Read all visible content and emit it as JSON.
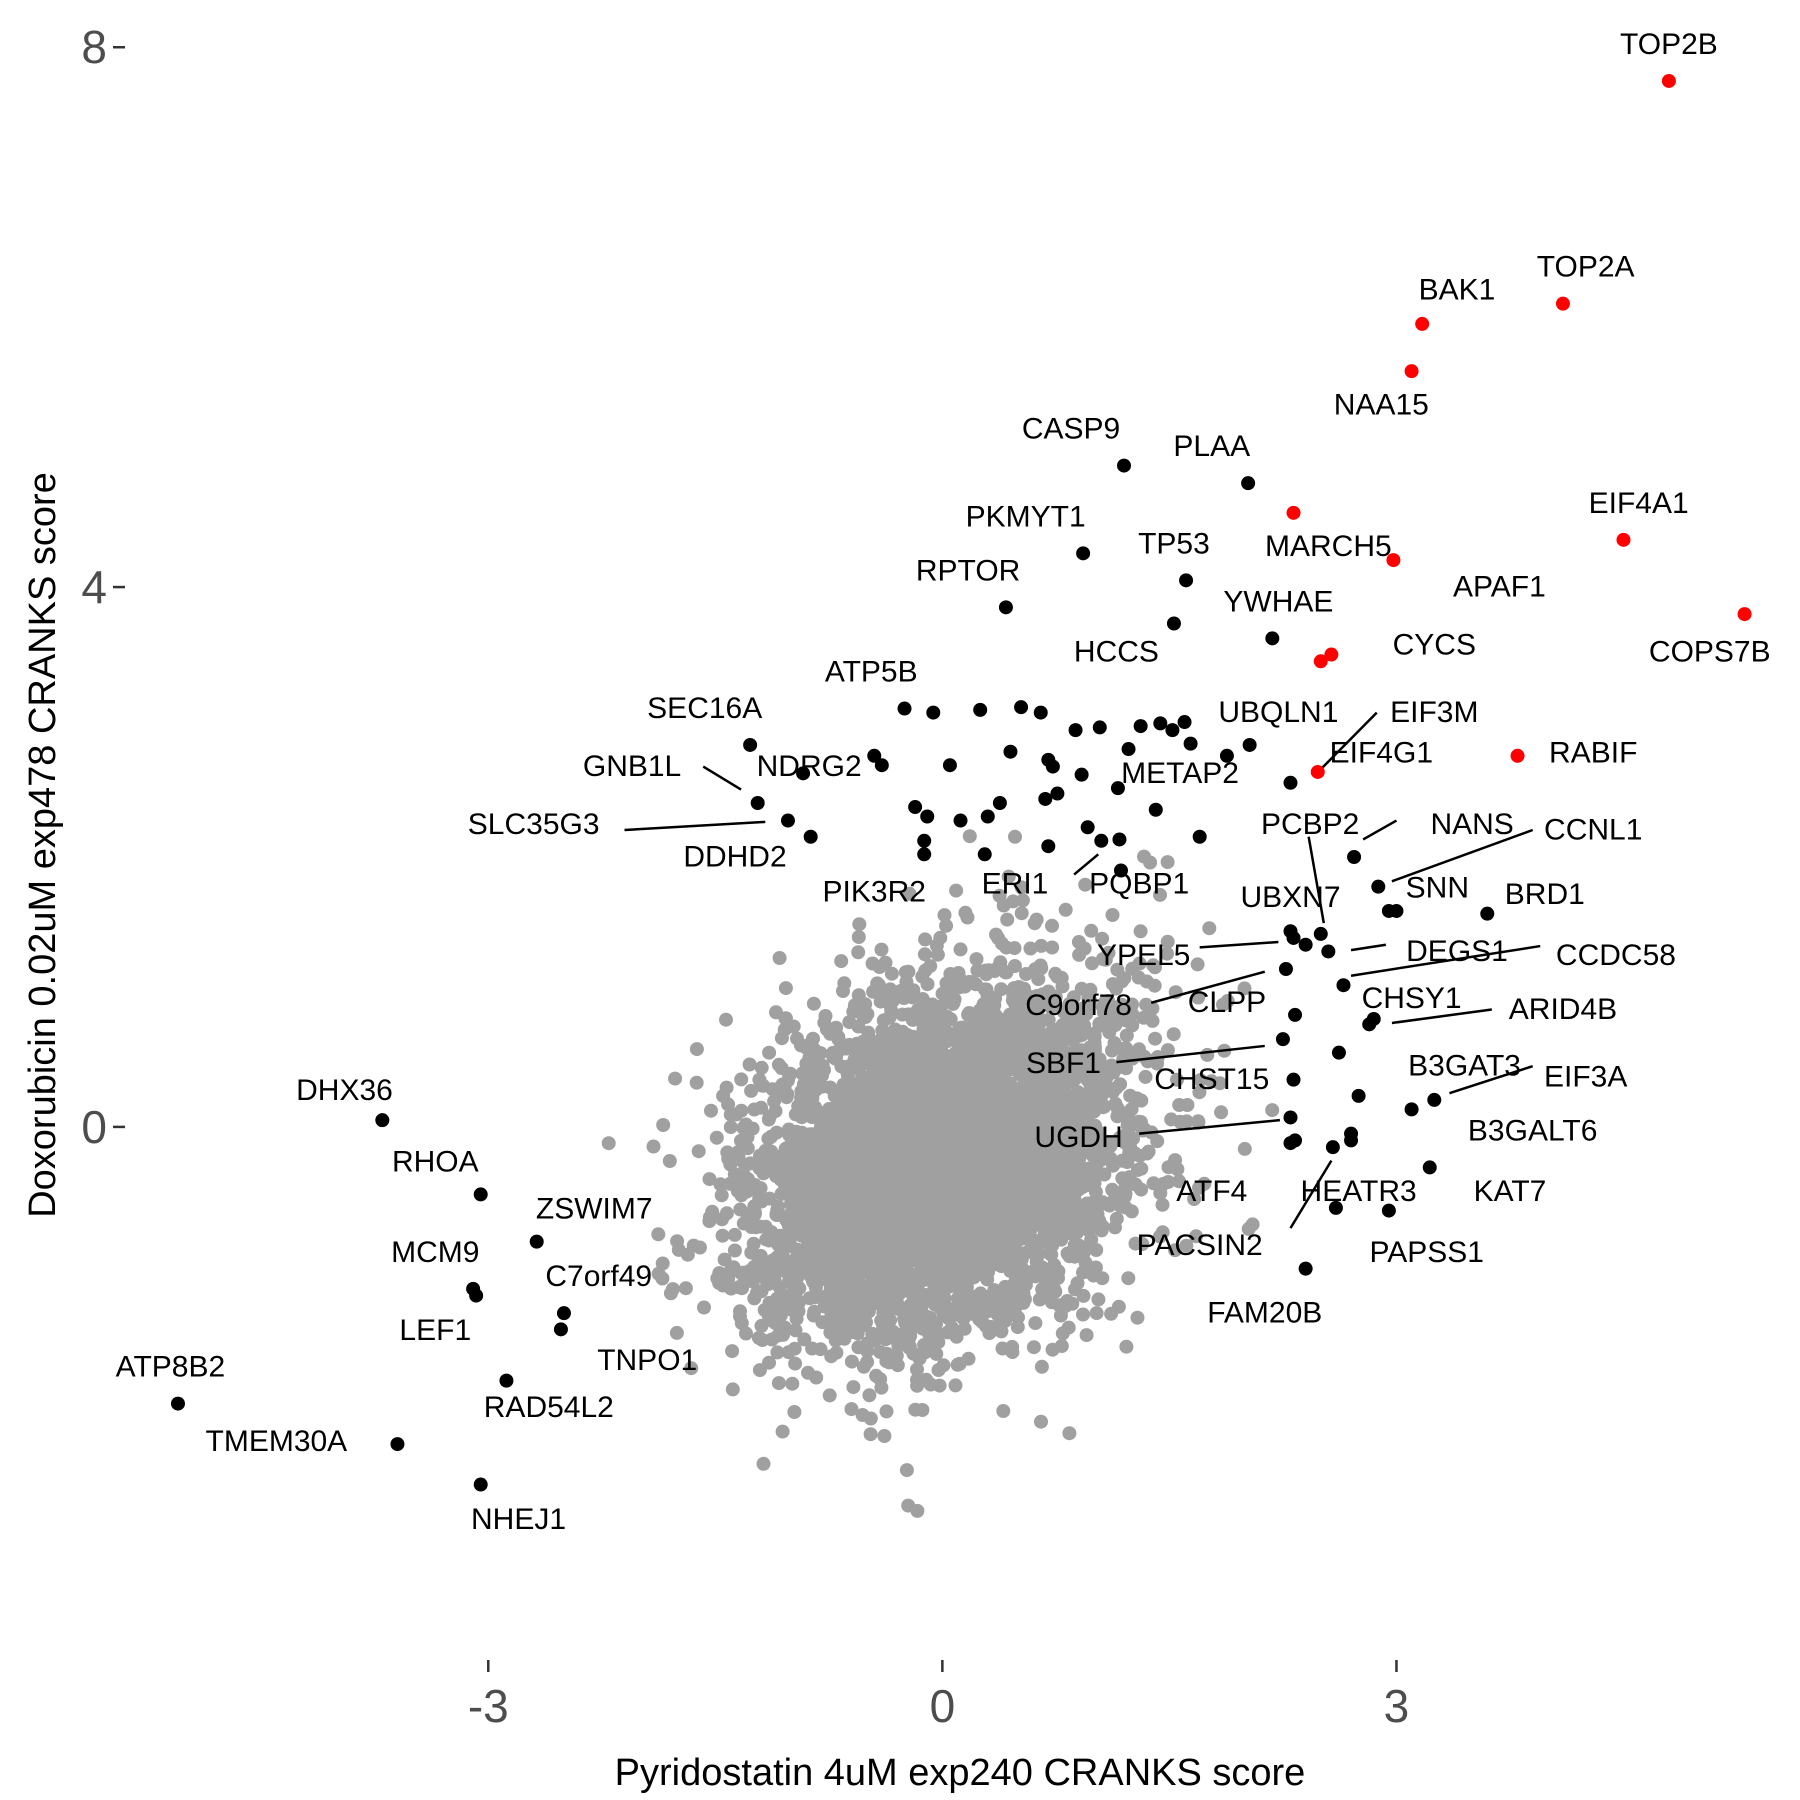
{
  "chart_data": {
    "type": "scatter",
    "xlabel": "Pyridostatin 4uM exp240 CRANKS score",
    "ylabel": "Doxorubicin 0.02uM exp478 CRANKS score",
    "xlim": [
      -5.4,
      5.6
    ],
    "ylim": [
      -3.95,
      8.35
    ],
    "x_ticks": [
      {
        "value": -3,
        "label": "-3"
      },
      {
        "value": 0,
        "label": "0"
      },
      {
        "value": 3,
        "label": "3"
      }
    ],
    "y_ticks": [
      {
        "value": 0,
        "label": "0"
      },
      {
        "value": 4,
        "label": "4"
      },
      {
        "value": 8,
        "label": "8"
      }
    ],
    "grid": false,
    "background_points": {
      "count": 5200,
      "color": "#a0a0a0",
      "x_sd": 0.6,
      "y_sd": 0.65,
      "correlation": 0.3
    },
    "colors": {
      "highlight": "#ff0000",
      "labeled": "#000000",
      "background": "#a0a0a0"
    },
    "highlighted": [
      {
        "gene": "TOP2B",
        "x": 4.8,
        "y": 7.75
      },
      {
        "gene": "TOP2A",
        "x": 4.1,
        "y": 6.1
      },
      {
        "gene": "BAK1",
        "x": 3.17,
        "y": 5.95
      },
      {
        "gene": "NAA15",
        "x": 3.1,
        "y": 5.6
      },
      {
        "gene": "MARCH5",
        "x": 2.32,
        "y": 4.55
      },
      {
        "gene": "EIF4A1",
        "x": 4.5,
        "y": 4.35
      },
      {
        "gene": "APAF1",
        "x": 2.98,
        "y": 4.2
      },
      {
        "gene": "COPS7B",
        "x": 5.3,
        "y": 3.8
      },
      {
        "gene": "CYCS",
        "x": 2.5,
        "y": 3.45
      },
      {
        "gene": "EIF3M",
        "x": 2.57,
        "y": 3.5
      },
      {
        "gene": "RABIF",
        "x": 3.8,
        "y": 2.75
      },
      {
        "gene": "EIF4G1",
        "x": 2.48,
        "y": 2.63
      }
    ],
    "labeled": [
      {
        "gene": "CASP9",
        "x": 1.2,
        "y": 4.9
      },
      {
        "gene": "PLAA",
        "x": 2.02,
        "y": 4.77
      },
      {
        "gene": "PKMYT1",
        "x": 0.93,
        "y": 4.25
      },
      {
        "gene": "TP53",
        "x": 1.61,
        "y": 4.05
      },
      {
        "gene": "RPTOR",
        "x": 0.42,
        "y": 3.85
      },
      {
        "gene": "YWHAE",
        "x": 2.18,
        "y": 3.62
      },
      {
        "gene": "HCCS",
        "x": 1.53,
        "y": 3.73
      },
      {
        "gene": "ATP5B",
        "x": -0.25,
        "y": 3.1
      },
      {
        "gene": "UBQLN1",
        "x": 1.6,
        "y": 3.0
      },
      {
        "gene": "METAP2",
        "x": 1.41,
        "y": 2.35
      },
      {
        "gene": "SEC16A",
        "x": -1.27,
        "y": 2.83
      },
      {
        "gene": "GNB1L",
        "x": -1.22,
        "y": 2.4
      },
      {
        "gene": "NDRG2",
        "x": -0.92,
        "y": 2.62
      },
      {
        "gene": "SLC35G3",
        "x": -1.02,
        "y": 2.27
      },
      {
        "gene": "DDHD2",
        "x": -0.87,
        "y": 2.15
      },
      {
        "gene": "PIK3R2",
        "x": -0.12,
        "y": 2.12
      },
      {
        "gene": "ERI1",
        "x": 1.05,
        "y": 2.12
      },
      {
        "gene": "PQBP1",
        "x": 1.17,
        "y": 2.13
      },
      {
        "gene": "PCBP2",
        "x": 2.72,
        "y": 2.0
      },
      {
        "gene": "NANS",
        "x": 2.88,
        "y": 1.78
      },
      {
        "gene": "CCNL1",
        "x": 2.95,
        "y": 1.6
      },
      {
        "gene": "SNN",
        "x": 3.0,
        "y": 1.6
      },
      {
        "gene": "BRD1",
        "x": 3.6,
        "y": 1.58
      },
      {
        "gene": "UBXN7",
        "x": 2.5,
        "y": 1.43
      },
      {
        "gene": "YPEL5",
        "x": 2.32,
        "y": 1.4
      },
      {
        "gene": "DEGS1",
        "x": 2.55,
        "y": 1.3
      },
      {
        "gene": "CCDC58",
        "x": 2.65,
        "y": 1.05
      },
      {
        "gene": "C9orf78",
        "x": 2.27,
        "y": 1.17
      },
      {
        "gene": "CLPP",
        "x": 2.33,
        "y": 0.83
      },
      {
        "gene": "CHSY1",
        "x": 2.85,
        "y": 0.8
      },
      {
        "gene": "ARID4B",
        "x": 2.82,
        "y": 0.76
      },
      {
        "gene": "SBF1",
        "x": 2.25,
        "y": 0.65
      },
      {
        "gene": "CHST15",
        "x": 2.62,
        "y": 0.55
      },
      {
        "gene": "B3GAT3",
        "x": 2.75,
        "y": 0.23
      },
      {
        "gene": "EIF3A",
        "x": 3.25,
        "y": 0.2
      },
      {
        "gene": "B3GALT6",
        "x": 3.1,
        "y": 0.13
      },
      {
        "gene": "UGDH",
        "x": 2.3,
        "y": 0.07
      },
      {
        "gene": "ATF4",
        "x": 2.33,
        "y": -0.1
      },
      {
        "gene": "HEATR3",
        "x": 2.58,
        "y": -0.15
      },
      {
        "gene": "KAT7",
        "x": 3.22,
        "y": -0.3
      },
      {
        "gene": "PACSIN2",
        "x": 2.6,
        "y": -0.6
      },
      {
        "gene": "PAPSS1",
        "x": 2.95,
        "y": -0.62
      },
      {
        "gene": "FAM20B",
        "x": 2.4,
        "y": -1.05
      },
      {
        "gene": "DHX36",
        "x": -3.7,
        "y": 0.05
      },
      {
        "gene": "RHOA",
        "x": -3.05,
        "y": -0.5
      },
      {
        "gene": "ZSWIM7",
        "x": -2.68,
        "y": -0.85
      },
      {
        "gene": "MCM9",
        "x": -3.1,
        "y": -1.2
      },
      {
        "gene": "LEF1",
        "x": -3.08,
        "y": -1.25
      },
      {
        "gene": "C7orf49",
        "x": -2.5,
        "y": -1.38
      },
      {
        "gene": "TNPO1",
        "x": -2.52,
        "y": -1.5
      },
      {
        "gene": "ATP8B2",
        "x": -5.05,
        "y": -2.05
      },
      {
        "gene": "RAD54L2",
        "x": -2.88,
        "y": -1.88
      },
      {
        "gene": "TMEM30A",
        "x": -3.6,
        "y": -2.35
      },
      {
        "gene": "NHEJ1",
        "x": -3.05,
        "y": -2.65
      }
    ],
    "unlabeled_outliers": [
      {
        "x": 0.65,
        "y": 3.07
      },
      {
        "x": 0.88,
        "y": 2.94
      },
      {
        "x": 1.04,
        "y": 2.96
      },
      {
        "x": 1.31,
        "y": 2.97
      },
      {
        "x": 1.44,
        "y": 2.99
      },
      {
        "x": 1.52,
        "y": 2.94
      },
      {
        "x": -0.06,
        "y": 3.07
      },
      {
        "x": 0.25,
        "y": 3.09
      },
      {
        "x": 0.52,
        "y": 3.11
      },
      {
        "x": 1.23,
        "y": 2.8
      },
      {
        "x": 1.64,
        "y": 2.84
      },
      {
        "x": 1.88,
        "y": 2.75
      },
      {
        "x": 2.03,
        "y": 2.83
      },
      {
        "x": 0.7,
        "y": 2.72
      },
      {
        "x": 0.45,
        "y": 2.78
      },
      {
        "x": -0.4,
        "y": 2.68
      },
      {
        "x": -0.45,
        "y": 2.75
      },
      {
        "x": 0.05,
        "y": 2.68
      },
      {
        "x": 0.73,
        "y": 2.67
      },
      {
        "x": 0.92,
        "y": 2.61
      },
      {
        "x": 1.16,
        "y": 2.51
      },
      {
        "x": 2.3,
        "y": 2.55
      },
      {
        "x": 0.38,
        "y": 2.4
      },
      {
        "x": 0.68,
        "y": 2.43
      },
      {
        "x": 0.76,
        "y": 2.47
      },
      {
        "x": -0.18,
        "y": 2.37
      },
      {
        "x": -0.1,
        "y": 2.3
      },
      {
        "x": 0.12,
        "y": 2.27
      },
      {
        "x": 0.3,
        "y": 2.3
      },
      {
        "x": 0.96,
        "y": 2.22
      },
      {
        "x": 1.7,
        "y": 2.15
      },
      {
        "x": -0.12,
        "y": 2.02
      },
      {
        "x": 0.28,
        "y": 2.02
      },
      {
        "x": 0.7,
        "y": 2.08
      },
      {
        "x": 1.18,
        "y": 1.9
      },
      {
        "x": 2.3,
        "y": 1.45
      },
      {
        "x": 2.4,
        "y": 1.35
      },
      {
        "x": 2.32,
        "y": 0.35
      },
      {
        "x": 2.3,
        "y": -0.12
      },
      {
        "x": 2.7,
        "y": -0.05
      },
      {
        "x": 2.7,
        "y": -0.1
      }
    ],
    "annotation_leaders": [
      {
        "from": [
          -1.58,
          2.67
        ],
        "to": [
          -1.33,
          2.5
        ]
      },
      {
        "from": [
          -2.1,
          2.2
        ],
        "to": [
          -1.17,
          2.26
        ]
      },
      {
        "from": [
          2.5,
          2.65
        ],
        "to": [
          2.87,
          3.07
        ]
      },
      {
        "from": [
          0.87,
          1.87
        ],
        "to": [
          1.03,
          2.02
        ]
      },
      {
        "from": [
          2.42,
          2.15
        ],
        "to": [
          2.52,
          1.51
        ]
      },
      {
        "from": [
          2.78,
          2.13
        ],
        "to": [
          3.0,
          2.27
        ]
      },
      {
        "from": [
          2.97,
          1.82
        ],
        "to": [
          3.9,
          2.2
        ]
      },
      {
        "from": [
          1.7,
          1.33
        ],
        "to": [
          2.22,
          1.37
        ]
      },
      {
        "from": [
          2.7,
          1.31
        ],
        "to": [
          2.93,
          1.35
        ]
      },
      {
        "from": [
          2.7,
          1.12
        ],
        "to": [
          3.95,
          1.34
        ]
      },
      {
        "from": [
          1.38,
          0.92
        ],
        "to": [
          2.13,
          1.15
        ]
      },
      {
        "from": [
          2.97,
          0.77
        ],
        "to": [
          3.63,
          0.87
        ]
      },
      {
        "from": [
          1.15,
          0.48
        ],
        "to": [
          2.13,
          0.6
        ]
      },
      {
        "from": [
          3.35,
          0.25
        ],
        "to": [
          3.9,
          0.45
        ]
      },
      {
        "from": [
          1.3,
          -0.05
        ],
        "to": [
          2.23,
          0.05
        ]
      },
      {
        "from": [
          2.3,
          -0.75
        ],
        "to": [
          2.57,
          -0.25
        ]
      }
    ],
    "label_positions": [
      {
        "text": "TOP2B",
        "x": 4.8,
        "y": 7.95,
        "anchor": "middle"
      },
      {
        "text": "TOP2A",
        "x": 4.25,
        "y": 6.3,
        "anchor": "middle"
      },
      {
        "text": "BAK1",
        "x": 3.4,
        "y": 6.13,
        "anchor": "middle"
      },
      {
        "text": "NAA15",
        "x": 2.9,
        "y": 5.28,
        "anchor": "middle"
      },
      {
        "text": "CASP9",
        "x": 0.85,
        "y": 5.1,
        "anchor": "middle"
      },
      {
        "text": "PLAA",
        "x": 1.78,
        "y": 4.97,
        "anchor": "middle"
      },
      {
        "text": "EIF4A1",
        "x": 4.6,
        "y": 4.55,
        "anchor": "middle"
      },
      {
        "text": "PKMYT1",
        "x": 0.55,
        "y": 4.45,
        "anchor": "middle"
      },
      {
        "text": "TP53",
        "x": 1.53,
        "y": 4.25,
        "anchor": "middle"
      },
      {
        "text": "MARCH5",
        "x": 2.55,
        "y": 4.23,
        "anchor": "middle"
      },
      {
        "text": "RPTOR",
        "x": 0.17,
        "y": 4.05,
        "anchor": "middle"
      },
      {
        "text": "APAF1",
        "x": 3.68,
        "y": 3.93,
        "anchor": "middle"
      },
      {
        "text": "YWHAE",
        "x": 2.22,
        "y": 3.82,
        "anchor": "middle"
      },
      {
        "text": "COPS7B",
        "x": 5.07,
        "y": 3.45,
        "anchor": "middle"
      },
      {
        "text": "CYCS",
        "x": 3.25,
        "y": 3.5,
        "anchor": "middle"
      },
      {
        "text": "HCCS",
        "x": 1.15,
        "y": 3.45,
        "anchor": "middle"
      },
      {
        "text": "ATP5B",
        "x": -0.47,
        "y": 3.3,
        "anchor": "middle"
      },
      {
        "text": "UBQLN1",
        "x": 2.22,
        "y": 3.0,
        "anchor": "middle"
      },
      {
        "text": "EIF3M",
        "x": 3.25,
        "y": 3.0,
        "anchor": "middle"
      },
      {
        "text": "SEC16A",
        "x": -1.57,
        "y": 3.03,
        "anchor": "middle"
      },
      {
        "text": "RABIF",
        "x": 4.3,
        "y": 2.7,
        "anchor": "middle"
      },
      {
        "text": "EIF4G1",
        "x": 2.9,
        "y": 2.7,
        "anchor": "middle"
      },
      {
        "text": "GNB1L",
        "x": -2.05,
        "y": 2.6,
        "anchor": "middle"
      },
      {
        "text": "NDRG2",
        "x": -0.88,
        "y": 2.6,
        "anchor": "middle"
      },
      {
        "text": "METAP2",
        "x": 1.57,
        "y": 2.55,
        "anchor": "middle"
      },
      {
        "text": "SLC35G3",
        "x": -2.7,
        "y": 2.17,
        "anchor": "middle"
      },
      {
        "text": "PCBP2",
        "x": 2.43,
        "y": 2.17,
        "anchor": "middle"
      },
      {
        "text": "NANS",
        "x": 3.5,
        "y": 2.17,
        "anchor": "middle"
      },
      {
        "text": "CCNL1",
        "x": 4.3,
        "y": 2.13,
        "anchor": "middle"
      },
      {
        "text": "DDHD2",
        "x": -1.37,
        "y": 1.93,
        "anchor": "middle"
      },
      {
        "text": "ERI1",
        "x": 0.48,
        "y": 1.73,
        "anchor": "middle"
      },
      {
        "text": "PQBP1",
        "x": 1.3,
        "y": 1.73,
        "anchor": "middle"
      },
      {
        "text": "PIK3R2",
        "x": -0.45,
        "y": 1.67,
        "anchor": "middle"
      },
      {
        "text": "SNN",
        "x": 3.27,
        "y": 1.7,
        "anchor": "middle"
      },
      {
        "text": "BRD1",
        "x": 3.98,
        "y": 1.65,
        "anchor": "middle"
      },
      {
        "text": "UBXN7",
        "x": 2.3,
        "y": 1.63,
        "anchor": "middle"
      },
      {
        "text": "YPEL5",
        "x": 1.33,
        "y": 1.2,
        "anchor": "middle"
      },
      {
        "text": "DEGS1",
        "x": 3.4,
        "y": 1.23,
        "anchor": "middle"
      },
      {
        "text": "CCDC58",
        "x": 4.45,
        "y": 1.2,
        "anchor": "middle"
      },
      {
        "text": "C9orf78",
        "x": 0.9,
        "y": 0.83,
        "anchor": "middle"
      },
      {
        "text": "CLPP",
        "x": 1.88,
        "y": 0.85,
        "anchor": "middle"
      },
      {
        "text": "CHSY1",
        "x": 3.1,
        "y": 0.88,
        "anchor": "middle"
      },
      {
        "text": "ARID4B",
        "x": 4.1,
        "y": 0.8,
        "anchor": "middle"
      },
      {
        "text": "SBF1",
        "x": 0.8,
        "y": 0.4,
        "anchor": "middle"
      },
      {
        "text": "CHST15",
        "x": 1.78,
        "y": 0.28,
        "anchor": "middle"
      },
      {
        "text": "B3GAT3",
        "x": 3.45,
        "y": 0.38,
        "anchor": "middle"
      },
      {
        "text": "EIF3A",
        "x": 4.25,
        "y": 0.3,
        "anchor": "middle"
      },
      {
        "text": "B3GALT6",
        "x": 3.9,
        "y": -0.1,
        "anchor": "middle"
      },
      {
        "text": "UGDH",
        "x": 0.9,
        "y": -0.15,
        "anchor": "middle"
      },
      {
        "text": "ATF4",
        "x": 1.78,
        "y": -0.55,
        "anchor": "middle"
      },
      {
        "text": "HEATR3",
        "x": 2.75,
        "y": -0.55,
        "anchor": "middle"
      },
      {
        "text": "KAT7",
        "x": 3.75,
        "y": -0.55,
        "anchor": "middle"
      },
      {
        "text": "PACSIN2",
        "x": 1.7,
        "y": -0.95,
        "anchor": "middle"
      },
      {
        "text": "PAPSS1",
        "x": 3.2,
        "y": -1.0,
        "anchor": "middle"
      },
      {
        "text": "FAM20B",
        "x": 2.13,
        "y": -1.45,
        "anchor": "middle"
      },
      {
        "text": "DHX36",
        "x": -3.95,
        "y": 0.2,
        "anchor": "middle"
      },
      {
        "text": "RHOA",
        "x": -3.35,
        "y": -0.33,
        "anchor": "middle"
      },
      {
        "text": "ZSWIM7",
        "x": -2.3,
        "y": -0.68,
        "anchor": "middle"
      },
      {
        "text": "MCM9",
        "x": -3.35,
        "y": -1.0,
        "anchor": "middle"
      },
      {
        "text": "C7orf49",
        "x": -2.27,
        "y": -1.18,
        "anchor": "middle"
      },
      {
        "text": "LEF1",
        "x": -3.35,
        "y": -1.58,
        "anchor": "middle"
      },
      {
        "text": "TNPO1",
        "x": -1.95,
        "y": -1.8,
        "anchor": "middle"
      },
      {
        "text": "ATP8B2",
        "x": -5.1,
        "y": -1.85,
        "anchor": "middle"
      },
      {
        "text": "RAD54L2",
        "x": -2.6,
        "y": -2.15,
        "anchor": "middle"
      },
      {
        "text": "TMEM30A",
        "x": -4.4,
        "y": -2.4,
        "anchor": "middle"
      },
      {
        "text": "NHEJ1",
        "x": -2.8,
        "y": -2.98,
        "anchor": "middle"
      }
    ]
  }
}
